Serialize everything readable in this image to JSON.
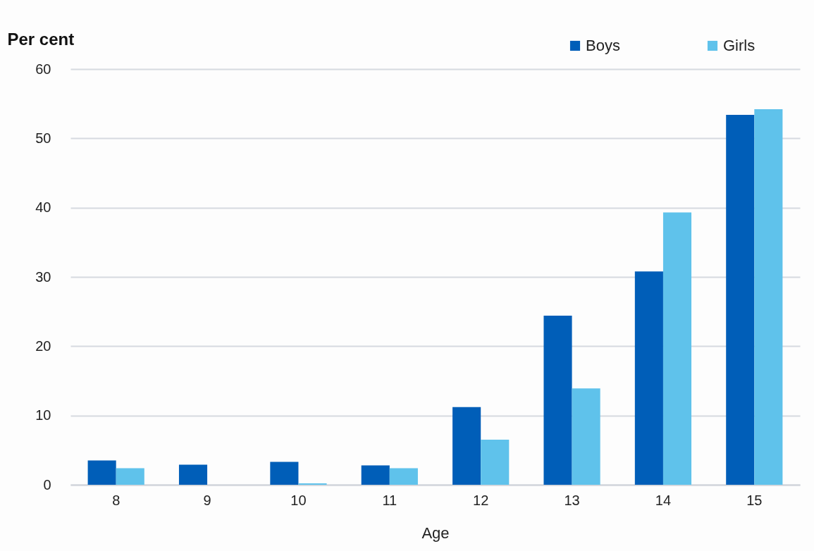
{
  "chart_data": {
    "type": "bar",
    "ylabel": "Per cent",
    "xlabel": "Age",
    "categories": [
      "8",
      "9",
      "10",
      "11",
      "12",
      "13",
      "14",
      "15"
    ],
    "series": [
      {
        "name": "Boys",
        "color": "#005eb8",
        "values": [
          3.5,
          2.9,
          3.3,
          2.8,
          11.2,
          24.4,
          30.8,
          53.4
        ]
      },
      {
        "name": "Girls",
        "color": "#5fc2eb",
        "values": [
          2.4,
          0,
          0.2,
          2.4,
          6.5,
          13.9,
          39.3,
          54.2
        ]
      }
    ],
    "ylim": [
      0,
      60
    ],
    "yticks": [
      0,
      10,
      20,
      30,
      40,
      50,
      60
    ],
    "grid": "y",
    "legend": "top right"
  }
}
